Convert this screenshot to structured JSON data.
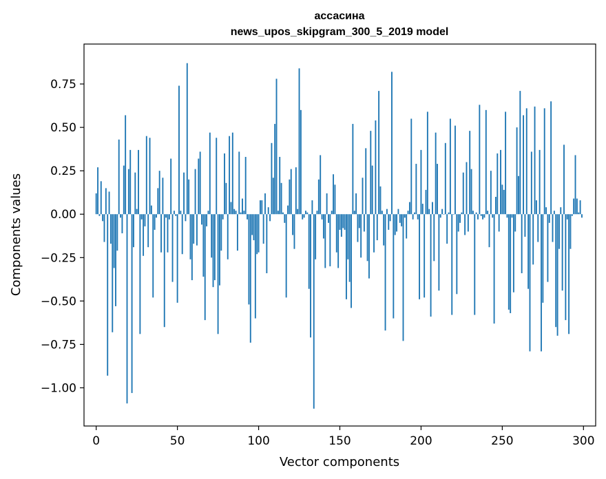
{
  "chart_data": {
    "type": "bar",
    "title": "ассасина",
    "subtitle": "news_upos_skipgram_300_5_2019 model",
    "xlabel": "Vector components",
    "ylabel": "Components values",
    "xlim": [
      -7.5,
      307.5
    ],
    "ylim": [
      -1.22,
      0.98
    ],
    "xticks": [
      0,
      50,
      100,
      150,
      200,
      250,
      300
    ],
    "xtick_labels": [
      "0",
      "50",
      "100",
      "150",
      "200",
      "250",
      "300"
    ],
    "yticks": [
      -1.0,
      -0.75,
      -0.5,
      -0.25,
      0.0,
      0.25,
      0.5,
      0.75
    ],
    "ytick_labels": [
      "−1.00",
      "−0.75",
      "−0.50",
      "−0.25",
      "0.00",
      "0.25",
      "0.50",
      "0.75"
    ],
    "grid": false,
    "bar_color": "#1f77b4",
    "x": [
      0,
      1,
      2,
      3,
      4,
      5,
      6,
      7,
      8,
      9,
      10,
      11,
      12,
      13,
      14,
      15,
      16,
      17,
      18,
      19,
      20,
      21,
      22,
      23,
      24,
      25,
      26,
      27,
      28,
      29,
      30,
      31,
      32,
      33,
      34,
      35,
      36,
      37,
      38,
      39,
      40,
      41,
      42,
      43,
      44,
      45,
      46,
      47,
      48,
      49,
      50,
      51,
      52,
      53,
      54,
      55,
      56,
      57,
      58,
      59,
      60,
      61,
      62,
      63,
      64,
      65,
      66,
      67,
      68,
      69,
      70,
      71,
      72,
      73,
      74,
      75,
      76,
      77,
      78,
      79,
      80,
      81,
      82,
      83,
      84,
      85,
      86,
      87,
      88,
      89,
      90,
      91,
      92,
      93,
      94,
      95,
      96,
      97,
      98,
      99,
      100,
      101,
      102,
      103,
      104,
      105,
      106,
      107,
      108,
      109,
      110,
      111,
      112,
      113,
      114,
      115,
      116,
      117,
      118,
      119,
      120,
      121,
      122,
      123,
      124,
      125,
      126,
      127,
      128,
      129,
      130,
      131,
      132,
      133,
      134,
      135,
      136,
      137,
      138,
      139,
      140,
      141,
      142,
      143,
      144,
      145,
      146,
      147,
      148,
      149,
      150,
      151,
      152,
      153,
      154,
      155,
      156,
      157,
      158,
      159,
      160,
      161,
      162,
      163,
      164,
      165,
      166,
      167,
      168,
      169,
      170,
      171,
      172,
      173,
      174,
      175,
      176,
      177,
      178,
      179,
      180,
      181,
      182,
      183,
      184,
      185,
      186,
      187,
      188,
      189,
      190,
      191,
      192,
      193,
      194,
      195,
      196,
      197,
      198,
      199,
      200,
      201,
      202,
      203,
      204,
      205,
      206,
      207,
      208,
      209,
      210,
      211,
      212,
      213,
      214,
      215,
      216,
      217,
      218,
      219,
      220,
      221,
      222,
      223,
      224,
      225,
      226,
      227,
      228,
      229,
      230,
      231,
      232,
      233,
      234,
      235,
      236,
      237,
      238,
      239,
      240,
      241,
      242,
      243,
      244,
      245,
      246,
      247,
      248,
      249,
      250,
      251,
      252,
      253,
      254,
      255,
      256,
      257,
      258,
      259,
      260,
      261,
      262,
      263,
      264,
      265,
      266,
      267,
      268,
      269,
      270,
      271,
      272,
      273,
      274,
      275,
      276,
      277,
      278,
      279,
      280,
      281,
      282,
      283,
      284,
      285,
      286,
      287,
      288,
      289,
      290,
      291,
      292,
      293,
      294,
      295,
      296,
      297,
      298,
      299
    ],
    "values": [
      0.12,
      0.27,
      -0.01,
      0.19,
      -0.04,
      -0.16,
      0.15,
      -0.93,
      0.13,
      -0.17,
      -0.68,
      -0.31,
      -0.53,
      -0.21,
      0.43,
      -0.02,
      -0.11,
      0.28,
      0.57,
      -1.09,
      0.26,
      0.37,
      -1.03,
      -0.19,
      0.24,
      0.03,
      0.37,
      -0.69,
      -0.03,
      -0.24,
      -0.07,
      0.45,
      -0.19,
      0.44,
      0.05,
      -0.48,
      -0.09,
      -0.02,
      0.15,
      0.25,
      -0.22,
      0.21,
      -0.65,
      -0.02,
      -0.22,
      -0.03,
      0.32,
      -0.39,
      0.02,
      -0.01,
      -0.51,
      0.74,
      0.02,
      -0.23,
      0.24,
      -0.04,
      0.87,
      0.2,
      -0.26,
      -0.38,
      -0.17,
      0.26,
      -0.18,
      0.32,
      0.36,
      -0.06,
      -0.36,
      -0.61,
      -0.07,
      0.02,
      0.47,
      -0.25,
      -0.42,
      -0.38,
      0.44,
      -0.69,
      -0.41,
      -0.21,
      -0.03,
      0.35,
      0.18,
      -0.26,
      0.45,
      0.07,
      0.47,
      0.03,
      0.02,
      -0.21,
      0.36,
      0.01,
      0.09,
      0.02,
      0.33,
      -0.03,
      -0.52,
      -0.74,
      -0.12,
      -0.15,
      -0.6,
      -0.23,
      -0.22,
      0.08,
      0.08,
      -0.17,
      0.12,
      -0.34,
      0.04,
      -0.04,
      0.41,
      0.21,
      0.52,
      0.78,
      0.02,
      0.33,
      0.18,
      0.01,
      -0.05,
      -0.48,
      0.05,
      0.2,
      0.26,
      -0.12,
      -0.2,
      0.27,
      0.03,
      0.84,
      0.6,
      -0.03,
      -0.02,
      0.02,
      0.01,
      -0.43,
      -0.71,
      0.08,
      -1.12,
      -0.26,
      0.02,
      0.2,
      0.34,
      -0.03,
      -0.14,
      -0.31,
      0.12,
      -0.05,
      -0.3,
      0.02,
      0.23,
      0.17,
      -0.22,
      -0.31,
      -0.09,
      -0.13,
      -0.08,
      -0.09,
      -0.49,
      -0.26,
      -0.39,
      -0.54,
      0.52,
      0.02,
      0.12,
      -0.16,
      -0.08,
      -0.25,
      0.21,
      -0.1,
      0.38,
      -0.27,
      -0.37,
      0.48,
      0.28,
      -0.22,
      0.54,
      -0.15,
      0.71,
      0.16,
      0.02,
      -0.18,
      -0.67,
      0.03,
      -0.09,
      -0.04,
      0.82,
      -0.6,
      -0.12,
      -0.1,
      0.03,
      -0.05,
      -0.07,
      -0.73,
      -0.02,
      -0.14,
      0.02,
      0.07,
      0.55,
      -0.03,
      0.01,
      0.29,
      -0.03,
      -0.49,
      0.37,
      0.06,
      -0.48,
      0.14,
      0.59,
      0.03,
      -0.59,
      0.07,
      -0.27,
      0.47,
      0.29,
      -0.44,
      -0.02,
      0.03,
      0.0,
      0.41,
      -0.17,
      0.01,
      0.55,
      -0.58,
      0.0,
      0.51,
      -0.46,
      -0.1,
      -0.05,
      0.01,
      0.24,
      -0.12,
      0.3,
      -0.1,
      0.48,
      0.26,
      0.02,
      -0.58,
      0.01,
      -0.03,
      0.63,
      -0.01,
      -0.03,
      -0.02,
      0.6,
      0.02,
      -0.19,
      0.25,
      -0.02,
      -0.63,
      0.1,
      0.35,
      -0.1,
      0.37,
      0.17,
      0.14,
      0.59,
      -0.02,
      -0.55,
      -0.57,
      -0.02,
      -0.45,
      -0.1,
      0.5,
      0.22,
      0.71,
      -0.34,
      0.57,
      -0.13,
      0.61,
      -0.43,
      -0.79,
      0.36,
      -0.29,
      0.62,
      0.08,
      -0.16,
      0.37,
      -0.79,
      -0.51,
      0.61,
      0.04,
      -0.39,
      -0.05,
      0.65,
      -0.16,
      0.02,
      -0.65,
      -0.7,
      -0.2,
      0.04,
      -0.44,
      0.4,
      -0.61,
      -0.03,
      -0.69,
      -0.2,
      -0.01,
      0.09,
      0.34,
      0.09,
      0.01,
      0.08,
      -0.02
    ]
  }
}
